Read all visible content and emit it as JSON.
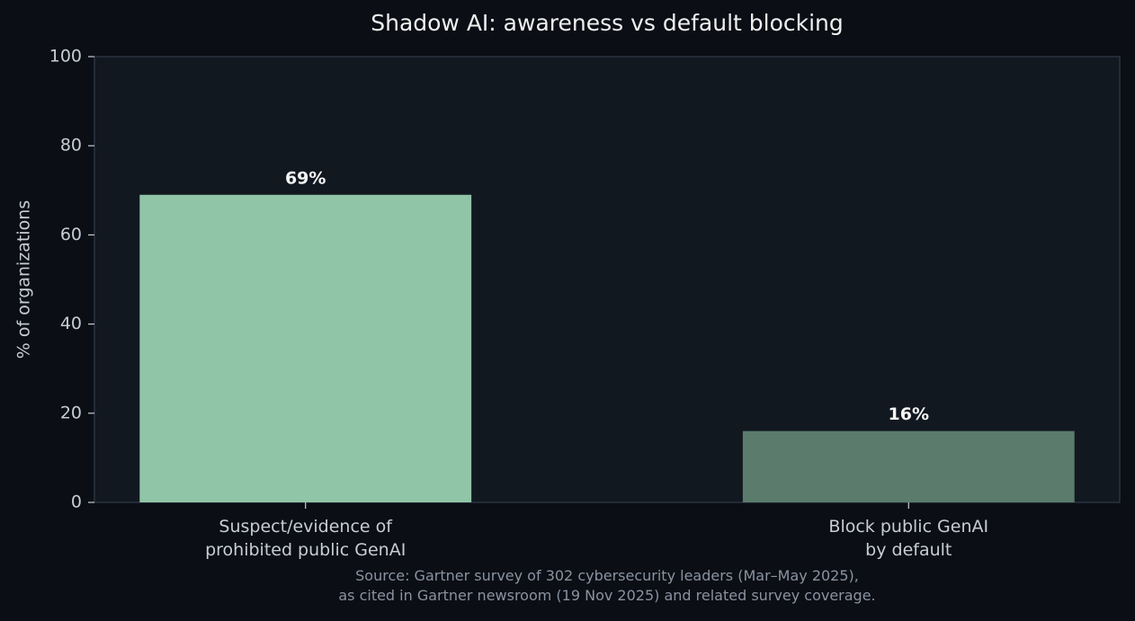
{
  "chart_data": {
    "type": "bar",
    "title": "Shadow AI: awareness vs default blocking",
    "y_label": "% of organizations",
    "categories": [
      "Suspect/evidence of\nprohibited public GenAI",
      "Block public GenAI\nby default"
    ],
    "values": [
      69,
      16
    ],
    "value_labels": [
      "69%",
      "16%"
    ],
    "colors": [
      "#90c5a7",
      "#5b7b6c"
    ],
    "ylim": [
      0,
      100
    ],
    "yticks": [
      0,
      20,
      40,
      60,
      80,
      100
    ],
    "note": "Source: Gartner survey of 302 cybersecurity leaders (Mar–May 2025),\nas cited in Gartner newsroom (19 Nov 2025) and related survey coverage."
  }
}
